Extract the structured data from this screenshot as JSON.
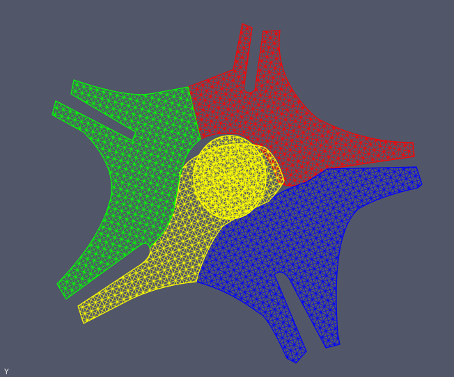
{
  "viewport": {
    "background": "#525669",
    "partitions": [
      {
        "name": "red",
        "color": "#ff0000"
      },
      {
        "name": "blue",
        "color": "#0000ff"
      },
      {
        "name": "yellow",
        "color": "#ffff00"
      },
      {
        "name": "green",
        "color": "#00ff00"
      }
    ],
    "axis_label": "Y"
  }
}
